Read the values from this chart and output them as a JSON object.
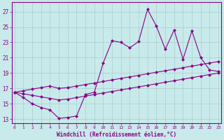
{
  "xlabel": "Windchill (Refroidissement éolien,°C)",
  "bg_color": "#c8eaea",
  "line_color": "#880088",
  "grid_color": "#aacccc",
  "x_ticks": [
    0,
    1,
    2,
    3,
    4,
    5,
    6,
    7,
    8,
    9,
    10,
    11,
    12,
    13,
    14,
    15,
    16,
    17,
    18,
    19,
    20,
    21,
    22,
    23
  ],
  "y_ticks": [
    13,
    15,
    17,
    19,
    21,
    23,
    25,
    27
  ],
  "xlim": [
    -0.3,
    23.3
  ],
  "ylim": [
    12.5,
    28.2
  ],
  "jagged_x": [
    0,
    1,
    2,
    3,
    4,
    5,
    6,
    7,
    8,
    9,
    10,
    11,
    12,
    13,
    14,
    15,
    16,
    17,
    18,
    19,
    20,
    21,
    22,
    23
  ],
  "jagged_y": [
    16.5,
    15.8,
    15.0,
    14.5,
    14.2,
    13.1,
    13.2,
    13.4,
    16.2,
    16.5,
    20.3,
    23.2,
    23.0,
    22.3,
    23.1,
    27.3,
    25.1,
    22.1,
    24.6,
    20.8,
    24.5,
    21.0,
    19.4,
    19.2
  ],
  "upper_x": [
    0,
    1,
    2,
    3,
    4,
    5,
    6,
    7,
    8,
    9,
    10,
    11,
    12,
    13,
    14,
    15,
    16,
    17,
    18,
    19,
    20,
    21,
    22,
    23
  ],
  "upper_y": [
    16.5,
    16.7,
    16.9,
    17.1,
    17.3,
    17.0,
    17.1,
    17.3,
    17.5,
    17.7,
    17.9,
    18.1,
    18.3,
    18.5,
    18.7,
    18.9,
    19.1,
    19.3,
    19.5,
    19.7,
    19.9,
    20.1,
    20.3,
    20.5
  ],
  "lower_x": [
    0,
    1,
    2,
    3,
    4,
    5,
    6,
    7,
    8,
    9,
    10,
    11,
    12,
    13,
    14,
    15,
    16,
    17,
    18,
    19,
    20,
    21,
    22,
    23
  ],
  "lower_y": [
    16.5,
    16.3,
    16.1,
    15.9,
    15.7,
    15.5,
    15.6,
    15.8,
    16.0,
    16.2,
    16.4,
    16.6,
    16.8,
    17.0,
    17.2,
    17.4,
    17.6,
    17.8,
    18.0,
    18.2,
    18.4,
    18.6,
    18.8,
    19.0
  ]
}
